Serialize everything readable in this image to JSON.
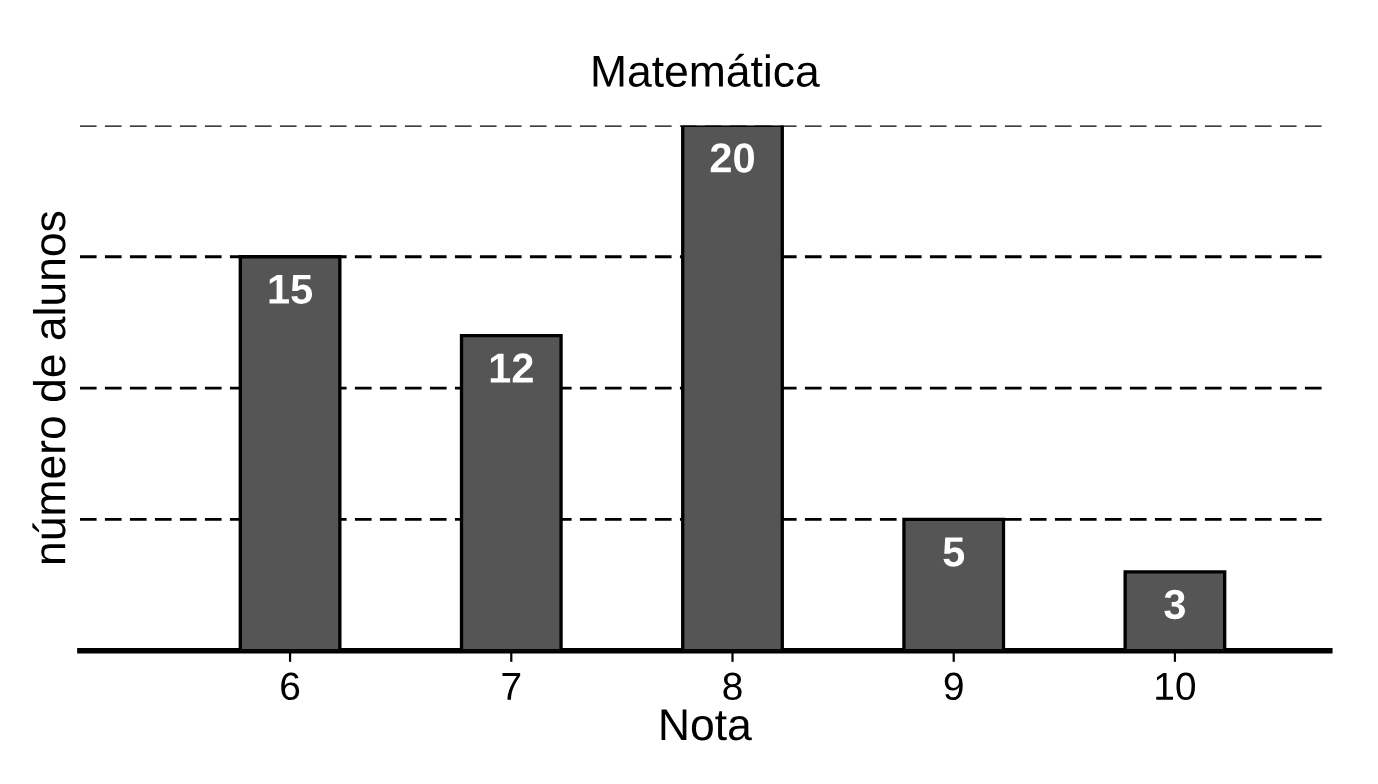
{
  "chart_data": {
    "type": "bar",
    "title": "Matemática",
    "xlabel": "Nota",
    "ylabel": "número de alunos",
    "categories": [
      "6",
      "7",
      "8",
      "9",
      "10"
    ],
    "values": [
      15,
      12,
      20,
      5,
      3
    ],
    "color": "#555555",
    "ylim": [
      0,
      20
    ],
    "yticks": [
      {
        "value": 5,
        "label": null
      },
      {
        "value": 10,
        "label": null
      },
      {
        "value": 15,
        "label": null
      },
      {
        "value": 20,
        "label": null
      }
    ],
    "grid": "y",
    "tick_labels": "x",
    "data_labels": true
  }
}
